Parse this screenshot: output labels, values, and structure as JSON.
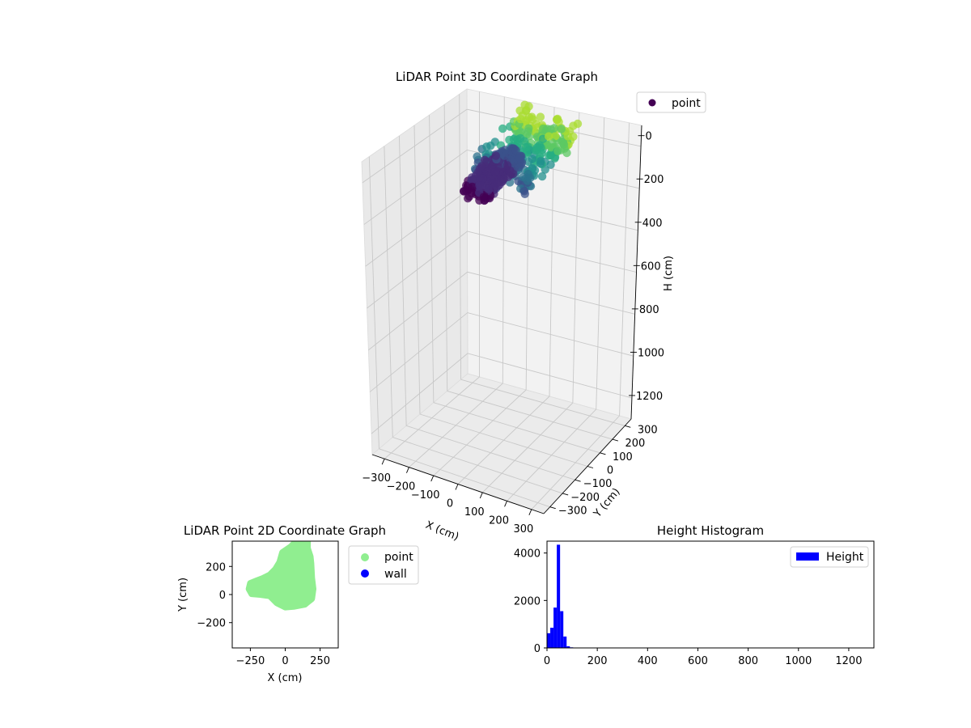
{
  "chart_data": [
    {
      "type": "scatter",
      "projection": "3d",
      "title": "LiDAR Point 3D Coordinate Graph",
      "xlabel": "X (cm)",
      "ylabel": "Y (cm)",
      "zlabel": "H (cm)",
      "xlim": [
        -350,
        350
      ],
      "ylim": [
        -350,
        350
      ],
      "zlim": [
        0,
        1300
      ],
      "z_inverted": true,
      "xticks": [
        "−300",
        "−200",
        "−100",
        "0",
        "100",
        "200",
        "300"
      ],
      "yticks": [
        "−300",
        "−200",
        "−100",
        "0",
        "100",
        "200",
        "300"
      ],
      "zticks": [
        "0",
        "200",
        "400",
        "600",
        "800",
        "1000",
        "1200"
      ],
      "grid": true,
      "legend": {
        "location": "top-right",
        "entries": [
          {
            "label": "point",
            "color": "#440154"
          }
        ]
      },
      "colormap": "viridis",
      "series": [
        {
          "name": "point",
          "clusters": [
            {
              "x_range": [
                -80,
                160
              ],
              "y_range": [
                -120,
                340
              ],
              "h_range": [
                0,
                80
              ]
            },
            {
              "x_range": [
                -60,
                40
              ],
              "y_range": [
                -200,
                120
              ],
              "h_range": [
                40,
                100
              ]
            }
          ]
        }
      ]
    },
    {
      "type": "scatter",
      "title": "LiDAR Point 2D Coordinate Graph",
      "xlabel": "X (cm)",
      "ylabel": "Y (cm)",
      "xlim": [
        -380,
        380
      ],
      "ylim": [
        -380,
        380
      ],
      "xticks": [
        -250,
        0,
        250
      ],
      "yticks": [
        -200,
        0,
        200
      ],
      "legend": {
        "location": "outside-right",
        "entries": [
          {
            "label": "point",
            "color": "#90ee90"
          },
          {
            "label": "wall",
            "color": "#0000ff"
          }
        ]
      },
      "series": [
        {
          "name": "point",
          "color": "#90ee90",
          "outline": [
            [
              -200,
              100
            ],
            [
              -250,
              80
            ],
            [
              -260,
              40
            ],
            [
              -240,
              5
            ],
            [
              -180,
              0
            ],
            [
              -110,
              -10
            ],
            [
              -60,
              -60
            ],
            [
              0,
              -90
            ],
            [
              60,
              -85
            ],
            [
              140,
              -70
            ],
            [
              190,
              -30
            ],
            [
              200,
              40
            ],
            [
              190,
              120
            ],
            [
              185,
              220
            ],
            [
              180,
              270
            ],
            [
              160,
              330
            ],
            [
              160,
              380
            ],
            [
              80,
              380
            ],
            [
              40,
              340
            ],
            [
              -20,
              300
            ],
            [
              -40,
              230
            ],
            [
              -70,
              180
            ],
            [
              -110,
              140
            ],
            [
              -160,
              115
            ]
          ]
        },
        {
          "name": "wall",
          "color": "#0000ff",
          "points": []
        }
      ]
    },
    {
      "type": "bar",
      "subtype": "histogram",
      "title": "Height Histogram",
      "xlim": [
        0,
        1300
      ],
      "ylim": [
        0,
        4500
      ],
      "xticks": [
        0,
        200,
        400,
        600,
        800,
        1000,
        1200
      ],
      "yticks": [
        0,
        2000,
        4000
      ],
      "legend": {
        "location": "top-right",
        "entries": [
          {
            "label": "Height",
            "color": "#0000ff"
          }
        ]
      },
      "series": [
        {
          "name": "Height",
          "color": "#0000ff",
          "bin_width": 13,
          "bins": [
            {
              "x": 0,
              "count": 620
            },
            {
              "x": 13,
              "count": 850
            },
            {
              "x": 26,
              "count": 1700
            },
            {
              "x": 39,
              "count": 4350
            },
            {
              "x": 52,
              "count": 1550
            },
            {
              "x": 65,
              "count": 480
            },
            {
              "x": 78,
              "count": 70
            },
            {
              "x": 91,
              "count": 25
            },
            {
              "x": 104,
              "count": 10
            },
            {
              "x": 117,
              "count": 5
            }
          ]
        }
      ]
    }
  ]
}
